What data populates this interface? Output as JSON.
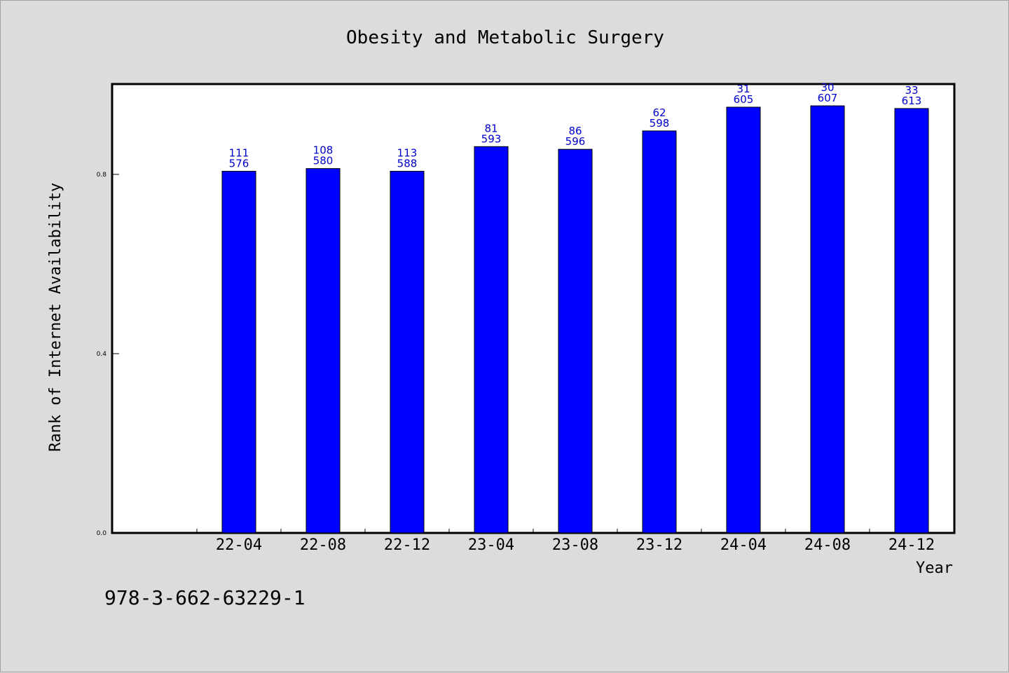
{
  "chart_data": {
    "type": "bar",
    "title": "Obesity and Metabolic Surgery",
    "xlabel": "Year",
    "ylabel": "Rank of Internet Availability",
    "categories": [
      "22-04",
      "22-08",
      "22-12",
      "23-04",
      "23-08",
      "23-12",
      "24-04",
      "24-08",
      "24-12"
    ],
    "values": [
      0.807,
      0.813,
      0.807,
      0.862,
      0.856,
      0.897,
      0.95,
      0.953,
      0.947
    ],
    "bar_labels_top": [
      "111",
      "108",
      "113",
      "81",
      "86",
      "62",
      "31",
      "30",
      "33"
    ],
    "bar_labels_bottom": [
      "576",
      "580",
      "588",
      "593",
      "596",
      "598",
      "605",
      "607",
      "613"
    ],
    "yticks": [
      0.0,
      0.4,
      0.8
    ],
    "ytick_labels": [
      "0.0",
      "0.4",
      "0.8"
    ],
    "ylim": [
      0,
      1.0
    ],
    "grid": false,
    "colors": {
      "bar": "#0000ff",
      "label": "#0000cc"
    }
  },
  "footer": {
    "isbn": "978-3-662-63229-1"
  }
}
